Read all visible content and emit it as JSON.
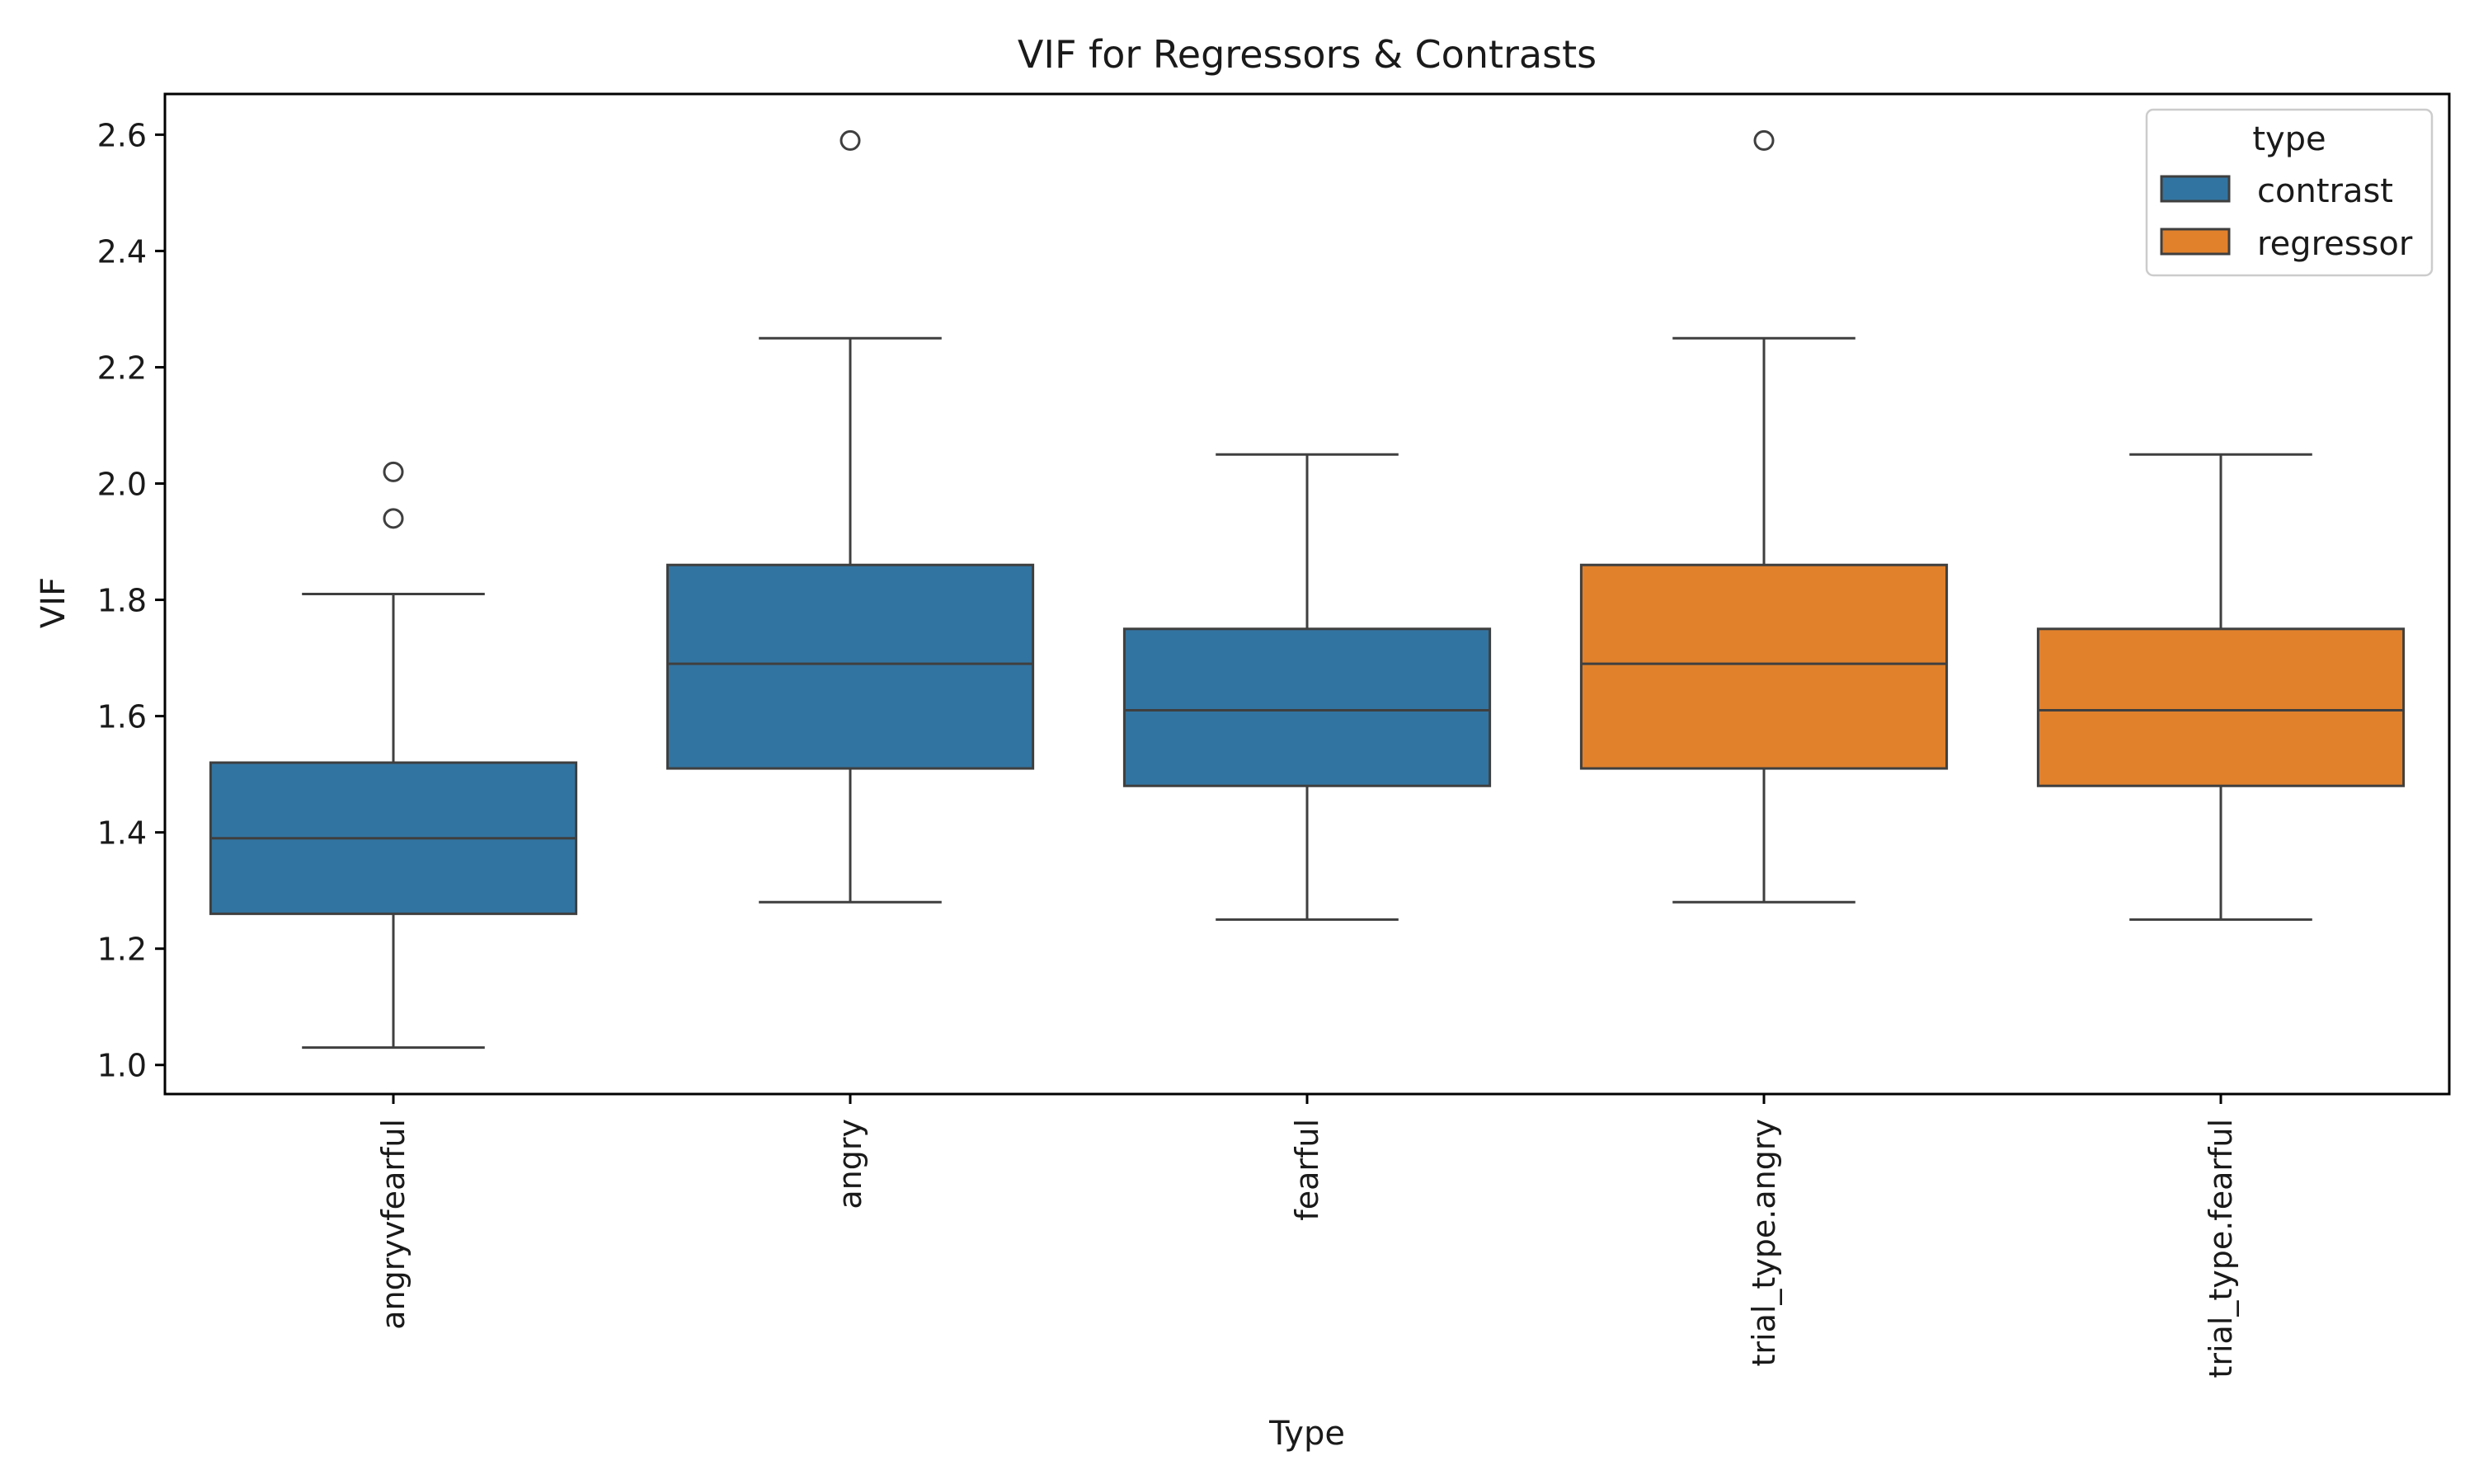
{
  "chart_data": {
    "type": "box",
    "title": "VIF for Regressors & Contrasts",
    "xlabel": "Type",
    "ylabel": "VIF",
    "ylim": [
      0.95,
      2.67
    ],
    "yticks": [
      "1.0",
      "1.2",
      "1.4",
      "1.6",
      "1.8",
      "2.0",
      "2.2",
      "2.4",
      "2.6"
    ],
    "grid": false,
    "legend": {
      "title": "type",
      "position": "top-right",
      "entries": [
        {
          "label": "contrast",
          "color": "#3274a1"
        },
        {
          "label": "regressor",
          "color": "#e1812c"
        }
      ]
    },
    "categories": [
      "angryvfearful",
      "angry",
      "fearful",
      "trial_type.angry",
      "trial_type.fearful"
    ],
    "boxes": [
      {
        "category": "angryvfearful",
        "type": "contrast",
        "whisker_low": 1.03,
        "q1": 1.26,
        "median": 1.39,
        "q3": 1.52,
        "whisker_high": 1.81,
        "outliers": [
          1.94,
          2.02
        ]
      },
      {
        "category": "angry",
        "type": "contrast",
        "whisker_low": 1.28,
        "q1": 1.51,
        "median": 1.69,
        "q3": 1.86,
        "whisker_high": 2.25,
        "outliers": [
          2.59
        ]
      },
      {
        "category": "fearful",
        "type": "contrast",
        "whisker_low": 1.25,
        "q1": 1.48,
        "median": 1.61,
        "q3": 1.75,
        "whisker_high": 2.05,
        "outliers": []
      },
      {
        "category": "trial_type.angry",
        "type": "regressor",
        "whisker_low": 1.28,
        "q1": 1.51,
        "median": 1.69,
        "q3": 1.86,
        "whisker_high": 2.25,
        "outliers": [
          2.59
        ]
      },
      {
        "category": "trial_type.fearful",
        "type": "regressor",
        "whisker_low": 1.25,
        "q1": 1.48,
        "median": 1.61,
        "q3": 1.75,
        "whisker_high": 2.05,
        "outliers": []
      }
    ],
    "colors": {
      "contrast": "#3274a1",
      "regressor": "#e1812c",
      "edge": "#3f3f3f"
    }
  }
}
